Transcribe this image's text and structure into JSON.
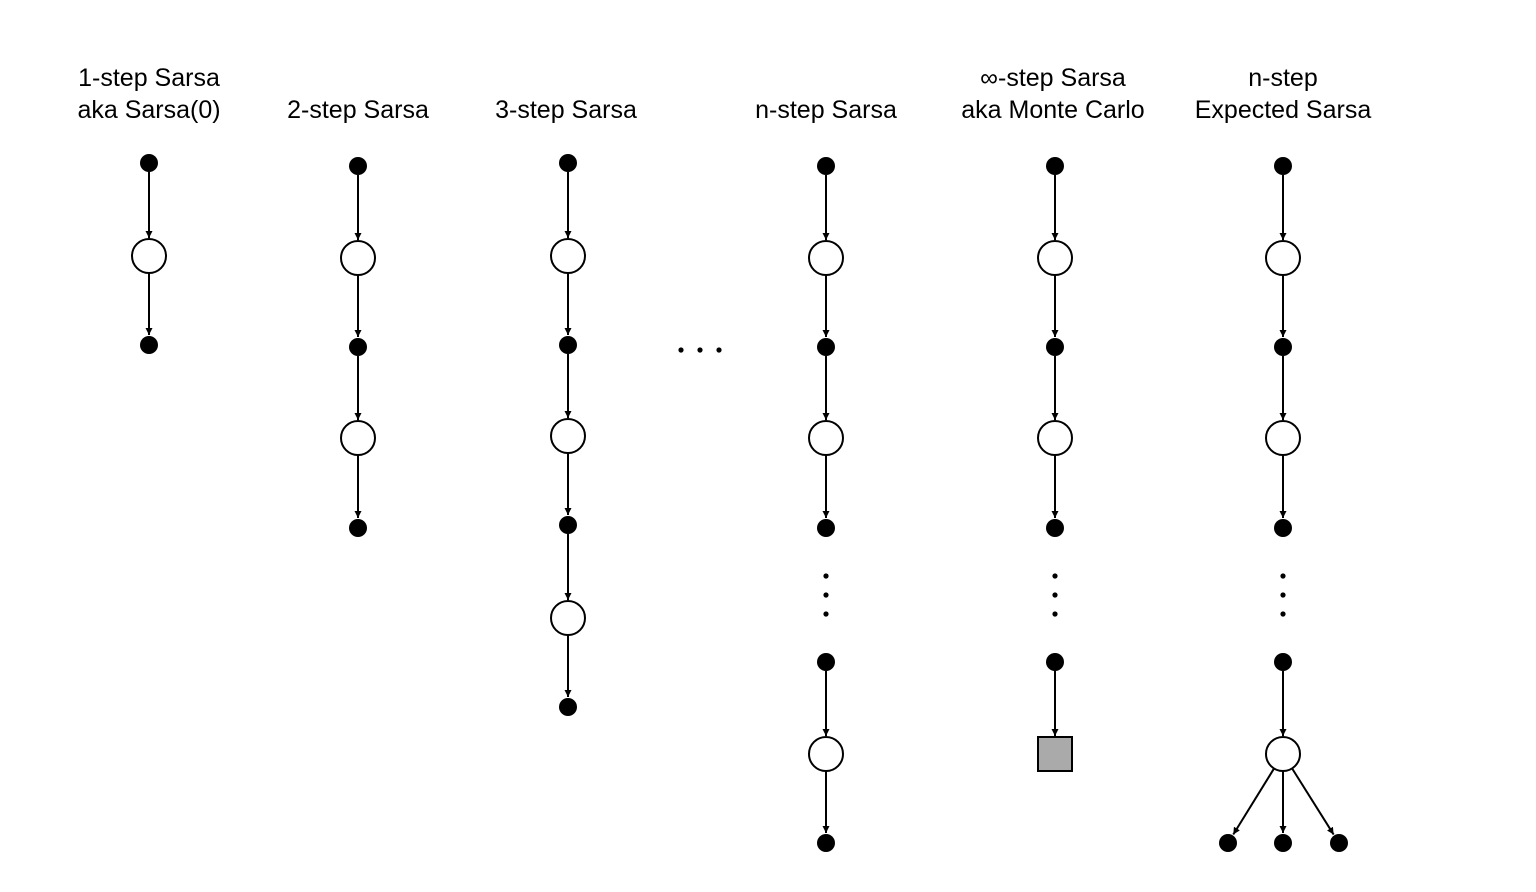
{
  "diagrams": [
    {
      "id": "sarsa1",
      "title_lines": [
        "1-step Sarsa",
        "aka Sarsa(0)"
      ]
    },
    {
      "id": "sarsa2",
      "title_lines": [
        "2-step Sarsa"
      ]
    },
    {
      "id": "sarsa3",
      "title_lines": [
        "3-step Sarsa"
      ]
    },
    {
      "id": "sarsan",
      "title_lines": [
        "n-step Sarsa"
      ]
    },
    {
      "id": "sarsainf",
      "title_lines": [
        "∞-step Sarsa",
        "aka Monte Carlo"
      ]
    },
    {
      "id": "expsarsa",
      "title_lines": [
        "n-step",
        "Expected Sarsa"
      ]
    }
  ],
  "colors": {
    "stroke": "#000000",
    "state_fill": "#000000",
    "action_fill": "#ffffff",
    "terminal_fill": "#aaaaaa"
  }
}
